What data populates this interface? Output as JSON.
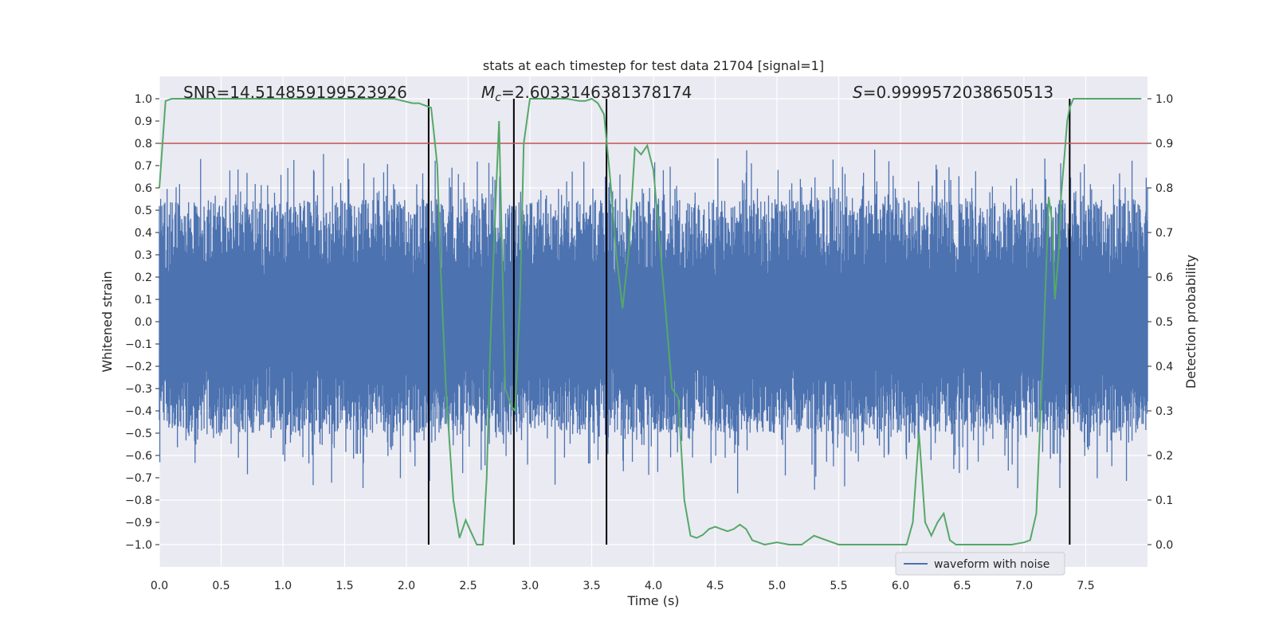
{
  "chart_data": {
    "type": "line",
    "title": "stats at each timestep for test data 21704 [signal=1]",
    "xlabel": "Time (s)",
    "ylabel": "Whitened strain",
    "y2label": "Detection probability",
    "xlim": [
      0,
      8
    ],
    "ylim": [
      -1.1,
      1.1
    ],
    "y2lim": [
      -0.05,
      1.05
    ],
    "grid": true,
    "x_ticks": [
      0.0,
      0.5,
      1.0,
      1.5,
      2.0,
      2.5,
      3.0,
      3.5,
      4.0,
      4.5,
      5.0,
      5.5,
      6.0,
      6.5,
      7.0,
      7.5
    ],
    "x_tick_labels": [
      "0.0",
      "0.5",
      "1.0",
      "1.5",
      "2.0",
      "2.5",
      "3.0",
      "3.5",
      "4.0",
      "4.5",
      "5.0",
      "5.5",
      "6.0",
      "6.5",
      "7.0",
      "7.5"
    ],
    "y_ticks": [
      1.0,
      0.9,
      0.8,
      0.7,
      0.6,
      0.5,
      0.4,
      0.3,
      0.2,
      0.1,
      0.0,
      -0.1,
      -0.2,
      -0.3,
      -0.4,
      -0.5,
      -0.6,
      -0.7,
      -0.8,
      -0.9,
      -1.0
    ],
    "y_tick_labels": [
      "1.0",
      "0.9",
      "0.8",
      "0.7",
      "0.6",
      "0.5",
      "0.4",
      "0.3",
      "0.2",
      "0.1",
      "0.0",
      "−0.1",
      "−0.2",
      "−0.3",
      "−0.4",
      "−0.5",
      "−0.6",
      "−0.7",
      "−0.8",
      "−0.9",
      "−1.0"
    ],
    "y2_ticks": [
      1.0,
      0.9,
      0.8,
      0.7,
      0.6,
      0.5,
      0.4,
      0.3,
      0.2,
      0.1,
      0.0
    ],
    "y2_tick_labels": [
      "1.0",
      "0.9",
      "0.8",
      "0.7",
      "0.6",
      "0.5",
      "0.4",
      "0.3",
      "0.2",
      "0.1",
      "0.0"
    ],
    "annotations": {
      "snr": "SNR=14.514859199523926",
      "mc_symbol": "M",
      "mc_sub": "c",
      "mc_value": "=2.6033146381378174",
      "s_symbol": "S",
      "s_value": "=0.9999572038650513"
    },
    "threshold": {
      "y2": 0.9,
      "color": "#c44e52"
    },
    "vertical_lines": [
      2.18,
      2.87,
      3.62,
      7.37
    ],
    "waveform": {
      "name": "waveform with noise",
      "color": "#4c72b0",
      "envelope_min": -1.0,
      "envelope_max": 1.0
    },
    "probability": {
      "color": "#55a868",
      "x": [
        0.0,
        0.05,
        0.1,
        0.2,
        0.5,
        1.0,
        1.5,
        1.9,
        2.05,
        2.1,
        2.15,
        2.2,
        2.22,
        2.25,
        2.28,
        2.32,
        2.38,
        2.43,
        2.48,
        2.52,
        2.57,
        2.62,
        2.65,
        2.68,
        2.72,
        2.75,
        2.8,
        2.85,
        2.88,
        2.92,
        2.95,
        3.0,
        3.1,
        3.2,
        3.3,
        3.4,
        3.45,
        3.5,
        3.55,
        3.6,
        3.65,
        3.7,
        3.75,
        3.8,
        3.85,
        3.9,
        3.95,
        4.0,
        4.05,
        4.1,
        4.15,
        4.2,
        4.25,
        4.3,
        4.35,
        4.4,
        4.45,
        4.5,
        4.55,
        4.6,
        4.65,
        4.7,
        4.75,
        4.8,
        4.85,
        4.9,
        5.0,
        5.1,
        5.2,
        5.3,
        5.4,
        5.5,
        5.6,
        5.7,
        5.8,
        5.9,
        6.0,
        6.05,
        6.1,
        6.15,
        6.2,
        6.25,
        6.3,
        6.35,
        6.4,
        6.45,
        6.5,
        6.6,
        6.7,
        6.8,
        6.9,
        7.0,
        7.05,
        7.1,
        7.12,
        7.15,
        7.18,
        7.2,
        7.23,
        7.25,
        7.28,
        7.3,
        7.33,
        7.35,
        7.37,
        7.4,
        7.42,
        7.45,
        7.5,
        7.7,
        7.95
      ],
      "y": [
        0.8,
        0.995,
        1.0,
        1.0,
        1.0,
        1.0,
        1.0,
        1.0,
        0.99,
        0.99,
        0.985,
        0.98,
        0.93,
        0.85,
        0.6,
        0.35,
        0.1,
        0.015,
        0.055,
        0.03,
        0.0,
        0.0,
        0.15,
        0.45,
        0.75,
        0.95,
        0.35,
        0.31,
        0.3,
        0.55,
        0.9,
        1.0,
        1.0,
        1.0,
        1.0,
        0.995,
        0.995,
        1.0,
        0.99,
        0.965,
        0.82,
        0.65,
        0.53,
        0.66,
        0.89,
        0.875,
        0.895,
        0.84,
        0.68,
        0.52,
        0.35,
        0.33,
        0.1,
        0.02,
        0.015,
        0.022,
        0.035,
        0.04,
        0.035,
        0.03,
        0.035,
        0.045,
        0.035,
        0.01,
        0.005,
        0.0,
        0.005,
        0.0,
        0.0,
        0.02,
        0.01,
        0.0,
        0.0,
        0.0,
        0.0,
        0.0,
        0.0,
        0.0,
        0.05,
        0.25,
        0.05,
        0.02,
        0.05,
        0.07,
        0.01,
        0.0,
        0.0,
        0.0,
        0.0,
        0.0,
        0.0,
        0.005,
        0.01,
        0.07,
        0.2,
        0.4,
        0.62,
        0.78,
        0.72,
        0.55,
        0.65,
        0.78,
        0.88,
        0.95,
        0.98,
        1.0,
        1.0,
        1.0,
        1.0,
        1.0,
        1.0
      ]
    },
    "legend": {
      "position": "lower-right",
      "entries": [
        "waveform with noise"
      ]
    }
  }
}
